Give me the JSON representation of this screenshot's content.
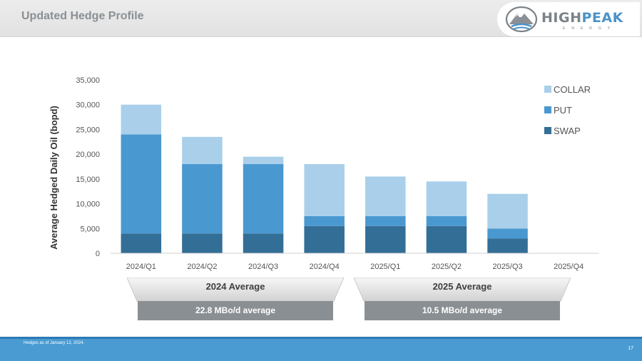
{
  "header": {
    "title": "Updated Hedge Profile",
    "logo": {
      "word_high": "HIGH",
      "word_peak": "PEAK",
      "sub": "ENERGY",
      "icon": "mountain-logo-icon"
    }
  },
  "chart_data": {
    "type": "bar",
    "stacked": true,
    "title": "",
    "xlabel": "",
    "ylabel": "Average Hedged Daily Oil (bopd)",
    "ylim": [
      0,
      35000
    ],
    "yticks": [
      "0",
      "5,000",
      "10,000",
      "15,000",
      "20,000",
      "25,000",
      "30,000",
      "35,000"
    ],
    "grid": false,
    "legend_position": "top-right",
    "categories": [
      "2024/Q1",
      "2024/Q2",
      "2024/Q3",
      "2024/Q4",
      "2025/Q1",
      "2025/Q2",
      "2025/Q3",
      "2025/Q4"
    ],
    "series": [
      {
        "name": "SWAP",
        "color": "#336e96",
        "values": [
          4000,
          4000,
          4000,
          5500,
          5500,
          5500,
          3000,
          0
        ]
      },
      {
        "name": "PUT",
        "color": "#4a98d0",
        "values": [
          20000,
          14000,
          14000,
          2000,
          2000,
          2000,
          2000,
          0
        ]
      },
      {
        "name": "COLLAR",
        "color": "#a9cfea",
        "values": [
          6000,
          5500,
          1500,
          10500,
          8000,
          7000,
          7000,
          0
        ]
      }
    ]
  },
  "averages": [
    {
      "label": "2024 Average",
      "value": "22.8 MBo/d average"
    },
    {
      "label": "2025 Average",
      "value": "10.5 MBo/d average"
    }
  ],
  "footer": {
    "footnote": "Hedges as of January 12, 2024.",
    "page_number": "17"
  }
}
